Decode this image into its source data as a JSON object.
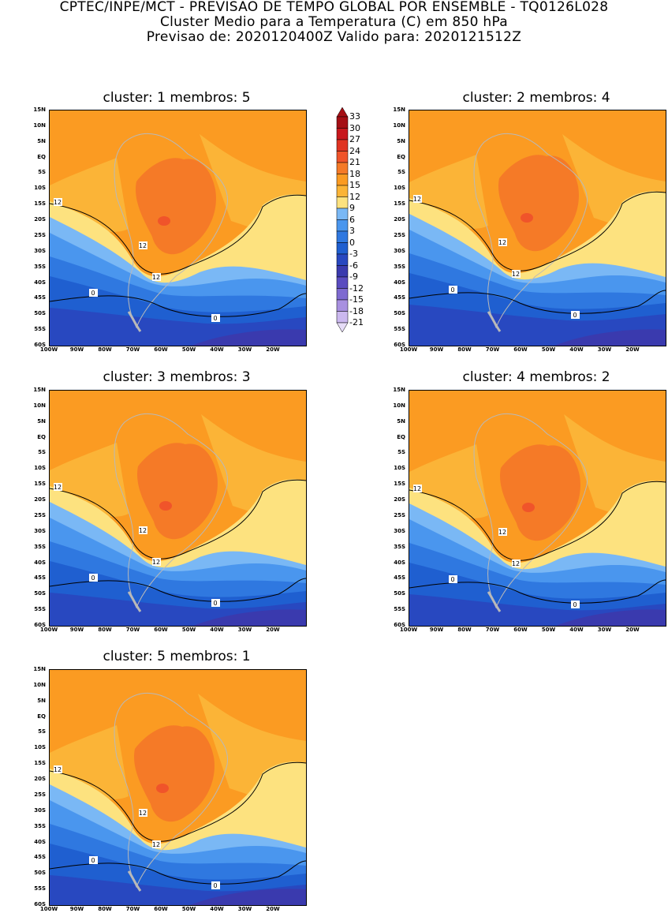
{
  "header": {
    "line1": "CPTEC/INPE/MCT - PREVISAO DE TEMPO GLOBAL POR ENSEMBLE - TQ0126L028",
    "line2": "Cluster Medio para a Temperatura (C) em 850 hPa",
    "line3": "Previsao de: 2020120400Z   Valido para: 2020121512Z"
  },
  "panels": [
    {
      "title": "cluster: 1  membros: 5"
    },
    {
      "title": "cluster: 2  membros: 4"
    },
    {
      "title": "cluster: 3  membros: 3"
    },
    {
      "title": "cluster: 4  membros: 2"
    },
    {
      "title": "cluster: 5  membros: 1"
    }
  ],
  "lat_labels": [
    "15N",
    "10N",
    "5N",
    "EQ",
    "5S",
    "10S",
    "15S",
    "20S",
    "25S",
    "30S",
    "35S",
    "40S",
    "45S",
    "50S",
    "55S",
    "60S"
  ],
  "lon_labels": [
    "100W",
    "90W",
    "80W",
    "70W",
    "60W",
    "50W",
    "40W",
    "30W",
    "20W"
  ],
  "contour_labels": {
    "twelve": "12",
    "zero": "0"
  },
  "colorbar": {
    "levels": [
      "33",
      "30",
      "27",
      "24",
      "21",
      "18",
      "15",
      "12",
      "9",
      "6",
      "3",
      "0",
      "-3",
      "-6",
      "-9",
      "-12",
      "-15",
      "-18",
      "-21"
    ],
    "colors": [
      "#a50f15",
      "#c8171c",
      "#e03422",
      "#f0542a",
      "#f57a27",
      "#fb9b22",
      "#fbb437",
      "#fde27f",
      "#7ab8f5",
      "#4a96ee",
      "#2f78e0",
      "#1f5fd0",
      "#2848c0",
      "#3a3aae",
      "#5a4cc0",
      "#7e6ad0",
      "#a890e0",
      "#cbb8ef",
      "#e6dcf7"
    ]
  }
}
